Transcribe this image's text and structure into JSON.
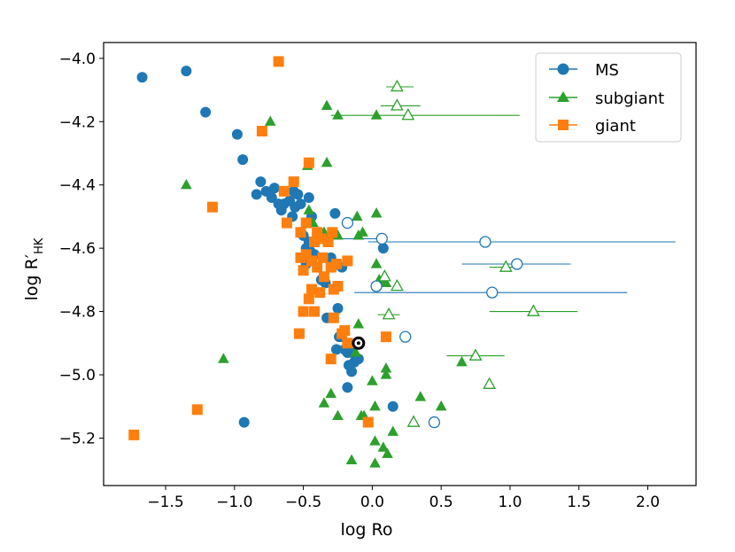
{
  "chart_data": {
    "type": "scatter",
    "xlabel": "log Ro",
    "ylabel": "log R′HK",
    "ylabel_main": "log R′",
    "ylabel_sub": "HK",
    "xlim": [
      -1.95,
      2.35
    ],
    "ylim": [
      -5.35,
      -3.95
    ],
    "xticks": [
      -1.5,
      -1.0,
      -0.5,
      0.0,
      0.5,
      1.0,
      1.5,
      2.0
    ],
    "xtick_labels": [
      "−1.5",
      "−1.0",
      "−0.5",
      "0.0",
      "0.5",
      "1.0",
      "1.5",
      "2.0"
    ],
    "yticks": [
      -4.0,
      -4.2,
      -4.4,
      -4.6,
      -4.8,
      -5.0,
      -5.2
    ],
    "ytick_labels": [
      "−4.0",
      "−4.2",
      "−4.4",
      "−4.6",
      "−4.8",
      "−5.0",
      "−5.2"
    ],
    "grid": false,
    "legend_position": "top-right",
    "series": [
      {
        "name": "MS",
        "marker": "circle",
        "color": "#1f77b4",
        "points": [
          [
            -1.67,
            -4.06
          ],
          [
            -1.35,
            -4.04
          ],
          [
            -1.21,
            -4.17
          ],
          [
            -0.98,
            -4.24
          ],
          [
            -0.94,
            -4.32
          ],
          [
            -0.84,
            -4.43
          ],
          [
            -0.81,
            -4.39
          ],
          [
            -0.77,
            -4.42
          ],
          [
            -0.73,
            -4.44
          ],
          [
            -0.71,
            -4.41
          ],
          [
            -0.68,
            -4.46
          ],
          [
            -0.66,
            -4.48
          ],
          [
            -0.64,
            -4.46
          ],
          [
            -0.6,
            -4.45
          ],
          [
            -0.58,
            -4.5
          ],
          [
            -0.56,
            -4.47
          ],
          [
            -0.57,
            -4.42
          ],
          [
            -0.54,
            -4.43
          ],
          [
            -0.52,
            -4.46
          ],
          [
            -0.5,
            -4.56
          ],
          [
            -0.48,
            -4.6
          ],
          [
            -0.46,
            -4.44
          ],
          [
            -0.44,
            -4.5
          ],
          [
            -0.46,
            -4.58
          ],
          [
            -0.45,
            -4.61
          ],
          [
            -0.44,
            -4.64
          ],
          [
            -0.42,
            -4.62
          ],
          [
            -0.48,
            -4.65
          ],
          [
            -0.37,
            -4.7
          ],
          [
            -0.34,
            -4.71
          ],
          [
            -0.3,
            -4.63
          ],
          [
            -0.29,
            -4.66
          ],
          [
            -0.27,
            -4.49
          ],
          [
            -0.22,
            -4.66
          ],
          [
            -0.33,
            -4.82
          ],
          [
            -0.25,
            -4.79
          ],
          [
            -0.24,
            -4.88
          ],
          [
            -0.22,
            -4.88
          ],
          [
            -0.26,
            -4.92
          ],
          [
            -0.2,
            -4.92
          ],
          [
            -0.18,
            -4.93
          ],
          [
            -0.15,
            -4.93
          ],
          [
            -0.1,
            -4.95
          ],
          [
            -0.13,
            -4.96
          ],
          [
            -0.17,
            -4.97
          ],
          [
            -0.15,
            -4.99
          ],
          [
            -0.18,
            -5.04
          ],
          [
            0.08,
            -4.6
          ],
          [
            0.15,
            -5.1
          ],
          [
            -0.93,
            -5.15
          ]
        ]
      },
      {
        "name": "subgiant",
        "marker": "triangle",
        "color": "#2ca02c",
        "points": [
          [
            -1.35,
            -4.4
          ],
          [
            -1.08,
            -4.95
          ],
          [
            -0.74,
            -4.2
          ],
          [
            -0.33,
            -4.15
          ],
          [
            -0.25,
            -4.18
          ],
          [
            -0.33,
            -4.33
          ],
          [
            -0.47,
            -4.34
          ],
          [
            -0.46,
            -4.48
          ],
          [
            -0.43,
            -4.52
          ],
          [
            -0.35,
            -4.55
          ],
          [
            -0.25,
            -4.56
          ],
          [
            -0.11,
            -4.5
          ],
          [
            -0.1,
            -4.56
          ],
          [
            -0.07,
            -4.55
          ],
          [
            0.03,
            -4.49
          ],
          [
            0.03,
            -4.65
          ],
          [
            0.05,
            -4.7
          ],
          [
            0.1,
            -4.71
          ],
          [
            -0.1,
            -4.84
          ],
          [
            -0.12,
            -4.93
          ],
          [
            0.1,
            -4.98
          ],
          [
            0.1,
            -5.0
          ],
          [
            0.0,
            -5.02
          ],
          [
            -0.35,
            -5.09
          ],
          [
            -0.3,
            -5.06
          ],
          [
            -0.25,
            -5.13
          ],
          [
            -0.08,
            -5.13
          ],
          [
            -0.06,
            -5.13
          ],
          [
            0.02,
            -5.1
          ],
          [
            0.02,
            -5.21
          ],
          [
            0.08,
            -5.23
          ],
          [
            0.15,
            -5.18
          ],
          [
            0.35,
            -5.07
          ],
          [
            0.5,
            -5.1
          ],
          [
            0.65,
            -4.96
          ],
          [
            0.11,
            -5.25
          ],
          [
            -0.15,
            -5.27
          ],
          [
            0.02,
            -5.28
          ],
          [
            0.03,
            -4.18
          ]
        ]
      },
      {
        "name": "giant",
        "marker": "square",
        "color": "#ff7f0e",
        "points": [
          [
            -0.68,
            -4.01
          ],
          [
            -0.8,
            -4.23
          ],
          [
            -0.46,
            -4.33
          ],
          [
            -1.16,
            -4.47
          ],
          [
            -0.57,
            -4.39
          ],
          [
            -0.64,
            -4.42
          ],
          [
            -0.62,
            -4.52
          ],
          [
            -0.52,
            -4.55
          ],
          [
            -0.48,
            -4.52
          ],
          [
            -0.4,
            -4.55
          ],
          [
            -0.37,
            -4.57
          ],
          [
            -0.32,
            -4.58
          ],
          [
            -0.29,
            -4.55
          ],
          [
            -0.42,
            -4.58
          ],
          [
            -0.36,
            -4.63
          ],
          [
            -0.52,
            -4.63
          ],
          [
            -0.48,
            -4.62
          ],
          [
            -0.44,
            -4.64
          ],
          [
            -0.5,
            -4.67
          ],
          [
            -0.4,
            -4.66
          ],
          [
            -0.35,
            -4.69
          ],
          [
            -0.3,
            -4.66
          ],
          [
            -0.26,
            -4.65
          ],
          [
            -0.18,
            -4.64
          ],
          [
            -0.44,
            -4.73
          ],
          [
            -0.46,
            -4.76
          ],
          [
            -0.38,
            -4.74
          ],
          [
            -0.28,
            -4.73
          ],
          [
            -0.25,
            -4.72
          ],
          [
            -0.5,
            -4.8
          ],
          [
            -0.42,
            -4.8
          ],
          [
            -0.28,
            -4.82
          ],
          [
            -0.22,
            -4.87
          ],
          [
            -0.2,
            -4.86
          ],
          [
            -0.18,
            -4.9
          ],
          [
            -0.3,
            -4.95
          ],
          [
            -0.53,
            -4.87
          ],
          [
            0.1,
            -4.88
          ],
          [
            -0.03,
            -5.15
          ],
          [
            -1.27,
            -5.11
          ],
          [
            -1.73,
            -5.19
          ]
        ]
      }
    ],
    "open_points": [
      {
        "series": "MS",
        "x": -0.18,
        "y": -4.52,
        "xerr": [
          0.01,
          0.01
        ]
      },
      {
        "series": "MS",
        "x": 0.07,
        "y": -4.57,
        "xerr": [
          0.35,
          0.0
        ]
      },
      {
        "series": "MS",
        "x": 0.82,
        "y": -4.58,
        "xerr": [
          0.85,
          1.38
        ]
      },
      {
        "series": "MS",
        "x": 1.05,
        "y": -4.65,
        "xerr": [
          0.4,
          0.39
        ]
      },
      {
        "series": "MS",
        "x": 0.03,
        "y": -4.72,
        "xerr": [
          0.01,
          0.01
        ]
      },
      {
        "series": "MS",
        "x": 0.87,
        "y": -4.74,
        "xerr": [
          1.0,
          0.98
        ]
      },
      {
        "series": "MS",
        "x": 0.24,
        "y": -4.88,
        "xerr": [
          0.01,
          0.01
        ]
      },
      {
        "series": "MS",
        "x": 0.45,
        "y": -5.15,
        "xerr": [
          0.01,
          0.01
        ]
      },
      {
        "series": "subgiant",
        "x": 0.18,
        "y": -4.09,
        "xerr": [
          0.08,
          0.12
        ]
      },
      {
        "series": "subgiant",
        "x": 0.18,
        "y": -4.15,
        "xerr": [
          0.12,
          0.17
        ]
      },
      {
        "series": "subgiant",
        "x": 0.26,
        "y": -4.18,
        "xerr": [
          0.56,
          0.81
        ]
      },
      {
        "series": "subgiant",
        "x": 0.09,
        "y": -4.69,
        "xerr": [
          0.0,
          0.0
        ]
      },
      {
        "series": "subgiant",
        "x": 0.18,
        "y": -4.72,
        "xerr": [
          0.0,
          0.0
        ]
      },
      {
        "series": "subgiant",
        "x": 0.12,
        "y": -4.81,
        "xerr": [
          0.08,
          0.08
        ]
      },
      {
        "series": "subgiant",
        "x": 1.17,
        "y": -4.8,
        "xerr": [
          0.32,
          0.32
        ]
      },
      {
        "series": "subgiant",
        "x": 0.97,
        "y": -4.66,
        "xerr": [
          0.12,
          0.08
        ]
      },
      {
        "series": "subgiant",
        "x": 0.75,
        "y": -4.94,
        "xerr": [
          0.21,
          0.21
        ]
      },
      {
        "series": "subgiant",
        "x": 0.85,
        "y": -5.03,
        "xerr": [
          0.0,
          0.0
        ]
      },
      {
        "series": "subgiant",
        "x": 0.3,
        "y": -5.15,
        "xerr": [
          0.0,
          0.0
        ]
      }
    ],
    "sun": {
      "x": -0.1,
      "y": -4.9
    }
  }
}
